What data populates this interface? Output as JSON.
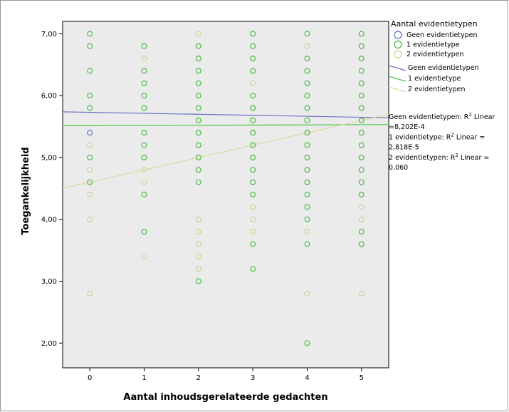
{
  "chart_data": {
    "type": "scatter",
    "xlabel": "Aantal inhoudsgerelateerde gedachten",
    "ylabel": "Toegankelijkheid",
    "xlim": [
      -0.5,
      5.5
    ],
    "ylim": [
      1.6,
      7.2
    ],
    "x_ticks": [
      "0",
      "1",
      "2",
      "3",
      "4",
      "5"
    ],
    "y_ticks": [
      "2,00",
      "3,00",
      "4,00",
      "5,00",
      "6,00",
      "7,00"
    ],
    "y_tick_values": [
      2,
      3,
      4,
      5,
      6,
      7
    ],
    "x_tick_values": [
      0,
      1,
      2,
      3,
      4,
      5
    ],
    "grid": false,
    "legend": {
      "title": "Aantal evidentietypen",
      "placement": "right",
      "markers": [
        "Geen evidentietypen",
        "1 evidentietype",
        "2 evidentietypen"
      ],
      "lines": [
        "Geen evidentietypen",
        "1 evidentietype",
        "2 evidentietypen"
      ]
    },
    "series": [
      {
        "name": "Geen evidentietypen",
        "color": "#5b6fc7",
        "points": [
          [
            0,
            5.4
          ]
        ],
        "fit": {
          "intercept": 5.73,
          "slope": -0.016
        }
      },
      {
        "name": "1 evidentietype",
        "color": "#3dba3d",
        "points": [
          [
            0,
            7.0
          ],
          [
            0,
            6.8
          ],
          [
            0,
            6.4
          ],
          [
            0,
            6.0
          ],
          [
            0,
            5.8
          ],
          [
            0,
            5.0
          ],
          [
            0,
            4.6
          ],
          [
            1,
            6.8
          ],
          [
            1,
            6.4
          ],
          [
            1,
            6.2
          ],
          [
            1,
            6.0
          ],
          [
            1,
            5.8
          ],
          [
            1,
            5.4
          ],
          [
            1,
            5.2
          ],
          [
            1,
            5.0
          ],
          [
            1,
            4.4
          ],
          [
            1,
            3.8
          ],
          [
            2,
            6.8
          ],
          [
            2,
            6.6
          ],
          [
            2,
            6.4
          ],
          [
            2,
            6.2
          ],
          [
            2,
            6.0
          ],
          [
            2,
            5.8
          ],
          [
            2,
            5.6
          ],
          [
            2,
            5.4
          ],
          [
            2,
            5.2
          ],
          [
            2,
            5.0
          ],
          [
            2,
            4.8
          ],
          [
            2,
            4.6
          ],
          [
            2,
            3.0
          ],
          [
            3,
            7.0
          ],
          [
            3,
            6.8
          ],
          [
            3,
            6.6
          ],
          [
            3,
            6.4
          ],
          [
            3,
            6.0
          ],
          [
            3,
            5.8
          ],
          [
            3,
            5.6
          ],
          [
            3,
            5.4
          ],
          [
            3,
            5.2
          ],
          [
            3,
            5.0
          ],
          [
            3,
            4.8
          ],
          [
            3,
            4.6
          ],
          [
            3,
            4.4
          ],
          [
            3,
            3.6
          ],
          [
            3,
            3.2
          ],
          [
            4,
            7.0
          ],
          [
            4,
            6.6
          ],
          [
            4,
            6.4
          ],
          [
            4,
            6.2
          ],
          [
            4,
            6.0
          ],
          [
            4,
            5.8
          ],
          [
            4,
            5.6
          ],
          [
            4,
            5.4
          ],
          [
            4,
            5.2
          ],
          [
            4,
            5.0
          ],
          [
            4,
            4.8
          ],
          [
            4,
            4.6
          ],
          [
            4,
            4.4
          ],
          [
            4,
            4.2
          ],
          [
            4,
            4.0
          ],
          [
            4,
            3.6
          ],
          [
            4,
            2.0
          ],
          [
            5,
            7.0
          ],
          [
            5,
            6.8
          ],
          [
            5,
            6.6
          ],
          [
            5,
            6.4
          ],
          [
            5,
            6.2
          ],
          [
            5,
            6.0
          ],
          [
            5,
            5.8
          ],
          [
            5,
            5.6
          ],
          [
            5,
            5.4
          ],
          [
            5,
            5.2
          ],
          [
            5,
            5.0
          ],
          [
            5,
            4.8
          ],
          [
            5,
            4.6
          ],
          [
            5,
            4.4
          ],
          [
            5,
            3.8
          ],
          [
            5,
            3.6
          ]
        ],
        "fit": {
          "intercept": 5.515,
          "slope": 0.003
        }
      },
      {
        "name": "2 evidentietypen",
        "color": "#d4cf8e",
        "points": [
          [
            0,
            5.2
          ],
          [
            0,
            4.8
          ],
          [
            0,
            4.4
          ],
          [
            0,
            4.0
          ],
          [
            0,
            2.8
          ],
          [
            1,
            6.6
          ],
          [
            1,
            6.4
          ],
          [
            1,
            5.0
          ],
          [
            1,
            4.8
          ],
          [
            1,
            4.6
          ],
          [
            1,
            3.4
          ],
          [
            2,
            7.0
          ],
          [
            2,
            6.8
          ],
          [
            2,
            6.6
          ],
          [
            2,
            6.4
          ],
          [
            2,
            6.0
          ],
          [
            2,
            5.8
          ],
          [
            2,
            5.6
          ],
          [
            2,
            5.4
          ],
          [
            2,
            5.2
          ],
          [
            2,
            5.0
          ],
          [
            2,
            4.0
          ],
          [
            2,
            3.8
          ],
          [
            2,
            3.6
          ],
          [
            2,
            3.4
          ],
          [
            2,
            3.2
          ],
          [
            3,
            7.0
          ],
          [
            3,
            6.8
          ],
          [
            3,
            6.6
          ],
          [
            3,
            6.4
          ],
          [
            3,
            6.2
          ],
          [
            3,
            6.0
          ],
          [
            3,
            5.8
          ],
          [
            3,
            5.6
          ],
          [
            3,
            5.4
          ],
          [
            3,
            5.0
          ],
          [
            3,
            4.8
          ],
          [
            3,
            4.6
          ],
          [
            3,
            4.4
          ],
          [
            3,
            4.2
          ],
          [
            3,
            4.0
          ],
          [
            3,
            3.8
          ],
          [
            4,
            6.8
          ],
          [
            4,
            6.6
          ],
          [
            4,
            6.4
          ],
          [
            4,
            6.2
          ],
          [
            4,
            6.0
          ],
          [
            4,
            5.8
          ],
          [
            4,
            5.4
          ],
          [
            4,
            5.2
          ],
          [
            4,
            5.0
          ],
          [
            4,
            4.8
          ],
          [
            4,
            4.6
          ],
          [
            4,
            3.8
          ],
          [
            4,
            2.8
          ],
          [
            5,
            7.0
          ],
          [
            5,
            6.8
          ],
          [
            5,
            6.6
          ],
          [
            5,
            6.4
          ],
          [
            5,
            6.2
          ],
          [
            5,
            6.0
          ],
          [
            5,
            5.8
          ],
          [
            5,
            5.6
          ],
          [
            5,
            5.4
          ],
          [
            5,
            5.2
          ],
          [
            5,
            5.0
          ],
          [
            5,
            4.6
          ],
          [
            5,
            4.4
          ],
          [
            5,
            4.2
          ],
          [
            5,
            4.0
          ],
          [
            5,
            3.6
          ],
          [
            5,
            2.8
          ]
        ],
        "fit": {
          "intercept": 4.6,
          "slope": 0.2
        }
      }
    ],
    "annotations": [
      [
        "Geen evidentietypen: R",
        "2",
        " Linear"
      ],
      [
        "=8,202E-4"
      ],
      [
        "1 evidentietype: R",
        "2",
        " Linear ="
      ],
      [
        "2,818E-5"
      ],
      [
        "2 evidentietypen: R",
        "2",
        " Linear ="
      ],
      [
        "0,060"
      ]
    ],
    "colors": {
      "plot_background": "#ebebeb",
      "fit_line_0": "#6a74c8",
      "fit_line_1": "#49c649",
      "fit_line_2": "#dcd8a4"
    }
  }
}
